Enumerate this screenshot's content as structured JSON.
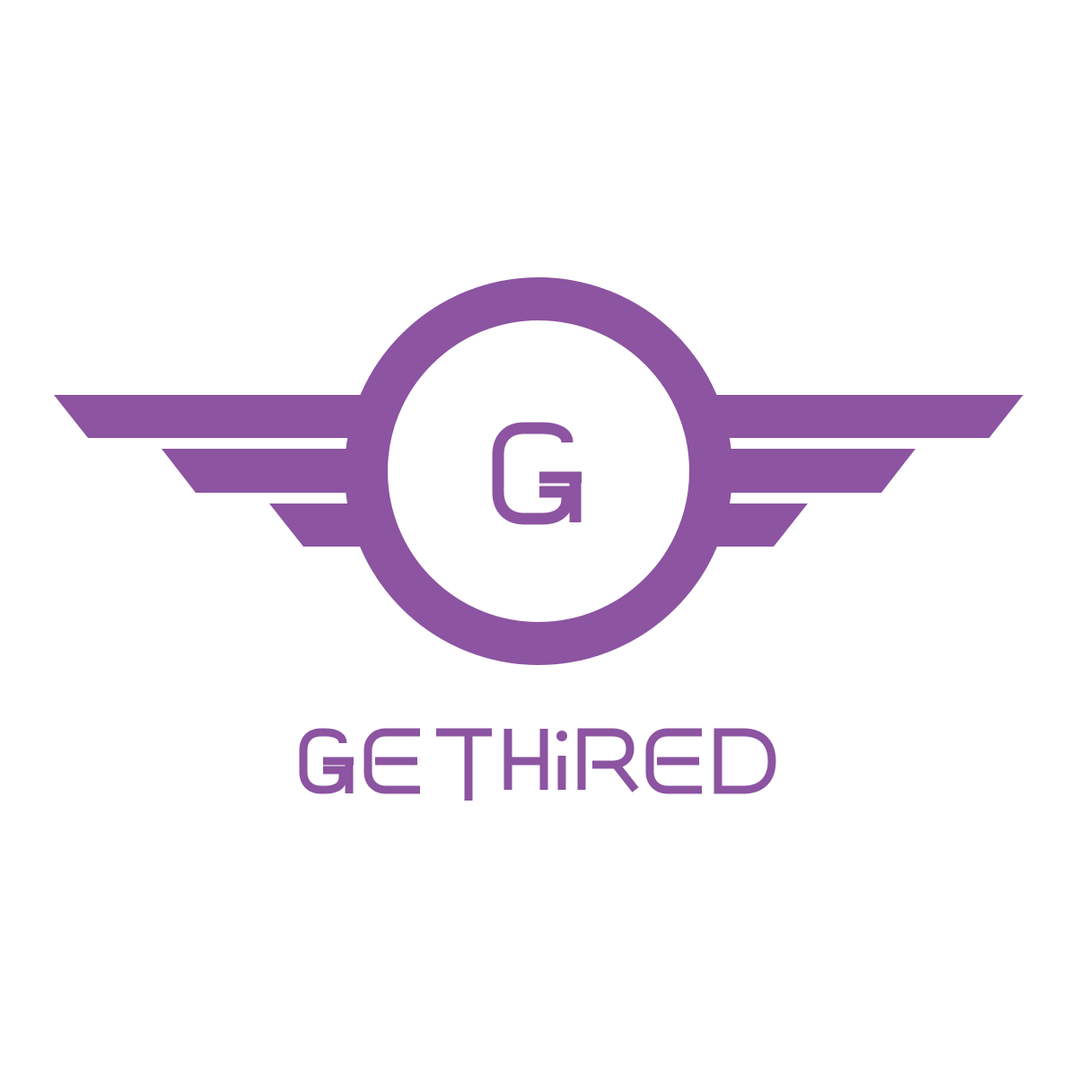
{
  "logo": {
    "brand_name": "GETHIRED",
    "monogram": "G",
    "colors": {
      "brand": "#8c54a1",
      "background": "#ffffff"
    },
    "icon_names": {
      "emblem": "winged-circle-emblem-icon",
      "monogram": "g-monogram-icon",
      "wordmark": "gethired-wordmark"
    }
  }
}
